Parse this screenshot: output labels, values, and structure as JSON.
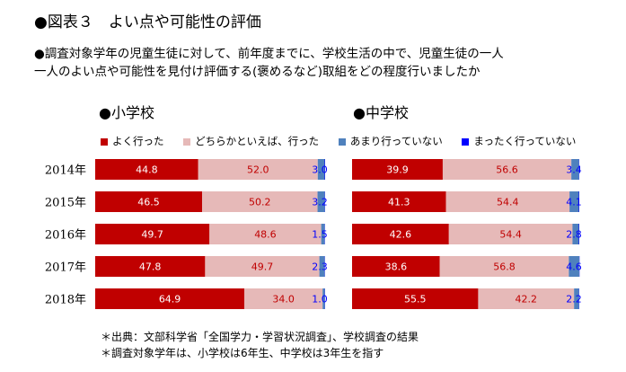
{
  "figure_title": "●図表３　よい点や可能性の評価",
  "question": [
    "●調査対象学年の児童生徒に対して、前年度までに、学校生活の中で、児童生徒の一人",
    "一人のよい点や可能性を見付け評価する(褒めるなど)取組をどの程度行いましたか"
  ],
  "notes": [
    "＊出典：文部科学省「全国学力・学習状況調査」、学校調査の結果",
    "＊調査対象学年は、小学校は6年生、中学校は3年生を指す"
  ],
  "colors": {
    "よく行った": "#c00000",
    "どちらかといえば、行った": "#e6b9b8",
    "あまり行っていない": "#4f81bd",
    "まったく行っていない": "#0000ff"
  },
  "chart_data": [
    {
      "type": "bar",
      "orientation": "horizontal",
      "stacked": true,
      "title": "●小学校",
      "categories": [
        "2014年",
        "2015年",
        "2016年",
        "2017年",
        "2018年"
      ],
      "xlim": [
        0,
        100
      ],
      "legend_position": "top",
      "series": [
        {
          "name": "よく行った",
          "values": [
            44.8,
            46.5,
            49.7,
            47.8,
            64.9
          ]
        },
        {
          "name": "どちらかといえば、行った",
          "values": [
            52.0,
            50.2,
            48.6,
            49.7,
            34.0
          ]
        },
        {
          "name": "あまり行っていない",
          "values": [
            3.0,
            3.2,
            1.5,
            2.3,
            1.0
          ]
        },
        {
          "name": "まったく行っていない",
          "values": [
            0.2,
            0.1,
            0.1,
            0.1,
            0.1
          ]
        }
      ]
    },
    {
      "type": "bar",
      "orientation": "horizontal",
      "stacked": true,
      "title": "●中学校",
      "categories": [
        "2014年",
        "2015年",
        "2016年",
        "2017年",
        "2018年"
      ],
      "xlim": [
        0,
        100
      ],
      "legend_position": "top",
      "series": [
        {
          "name": "よく行った",
          "values": [
            39.9,
            41.3,
            42.6,
            38.6,
            55.5
          ]
        },
        {
          "name": "どちらかといえば、行った",
          "values": [
            56.6,
            54.4,
            54.4,
            56.8,
            42.2
          ]
        },
        {
          "name": "あまり行っていない",
          "values": [
            3.4,
            4.1,
            2.8,
            4.6,
            2.2
          ]
        },
        {
          "name": "まったく行っていない",
          "values": [
            0.1,
            0.2,
            0.2,
            0.1,
            0.1
          ]
        }
      ]
    }
  ]
}
